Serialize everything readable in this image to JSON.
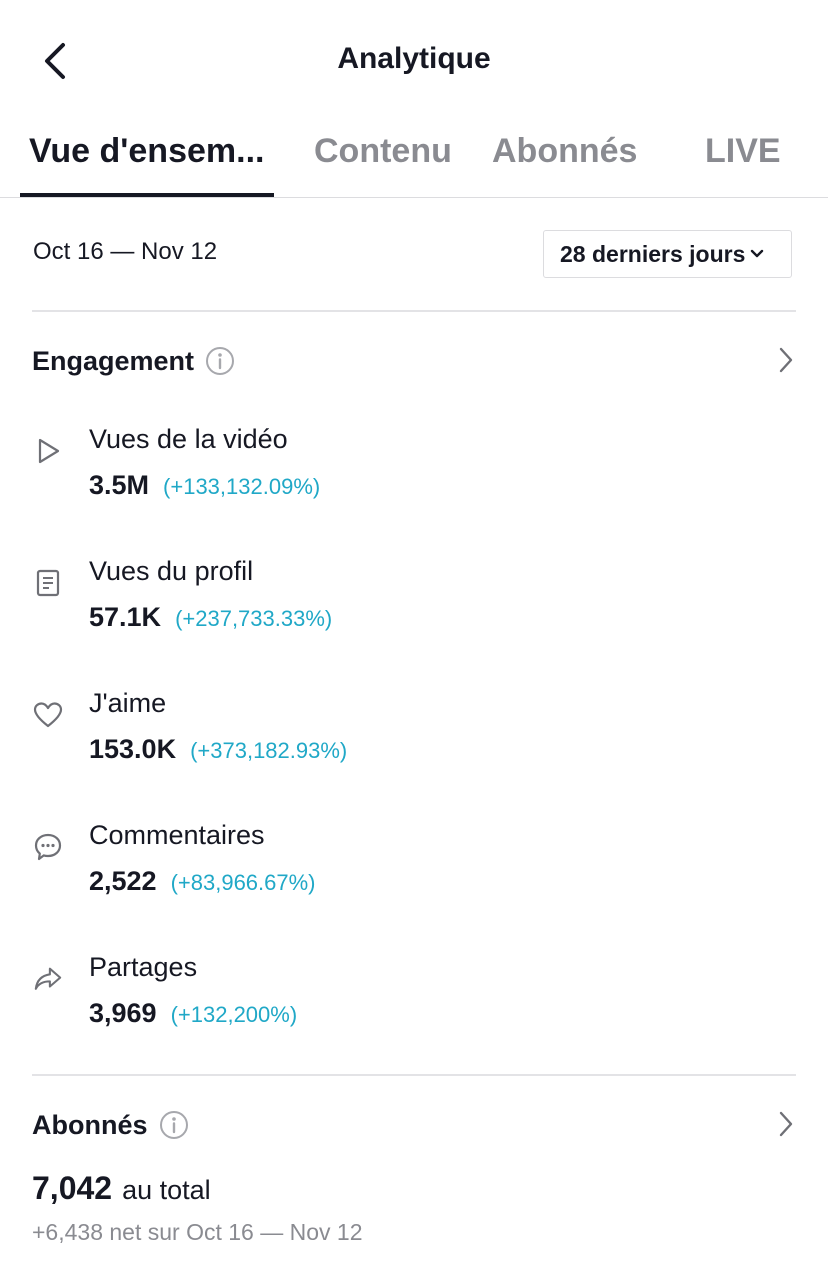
{
  "header": {
    "title": "Analytique",
    "back_icon": "chevron-left-icon"
  },
  "tabs": [
    {
      "label": "Vue d'ensem...",
      "active": true
    },
    {
      "label": "Contenu",
      "active": false
    },
    {
      "label": "Abonnés",
      "active": false
    },
    {
      "label": "LIVE",
      "active": false
    }
  ],
  "date_filter": {
    "range_text": "Oct 16 — Nov 12",
    "selected_option": "28 derniers jours"
  },
  "engagement": {
    "title": "Engagement",
    "metrics": [
      {
        "icon": "play-icon",
        "label": "Vues de la vidéo",
        "value": "3.5M",
        "change": "(+133,132.09%)"
      },
      {
        "icon": "profile-page-icon",
        "label": "Vues du profil",
        "value": "57.1K",
        "change": "(+237,733.33%)"
      },
      {
        "icon": "heart-icon",
        "label": "J'aime",
        "value": "153.0K",
        "change": "(+373,182.93%)"
      },
      {
        "icon": "comment-icon",
        "label": "Commentaires",
        "value": "2,522",
        "change": "(+83,966.67%)"
      },
      {
        "icon": "share-icon",
        "label": "Partages",
        "value": "3,969",
        "change": "(+132,200%)"
      }
    ]
  },
  "followers": {
    "title": "Abonnés",
    "total": "7,042",
    "total_suffix": "au total",
    "net_text": "+6,438 net sur Oct 16 — Nov 12"
  },
  "colors": {
    "text_primary": "#161823",
    "text_secondary": "#8a8b91",
    "change_accent": "#20a8c7",
    "divider": "#e3e3e6"
  }
}
